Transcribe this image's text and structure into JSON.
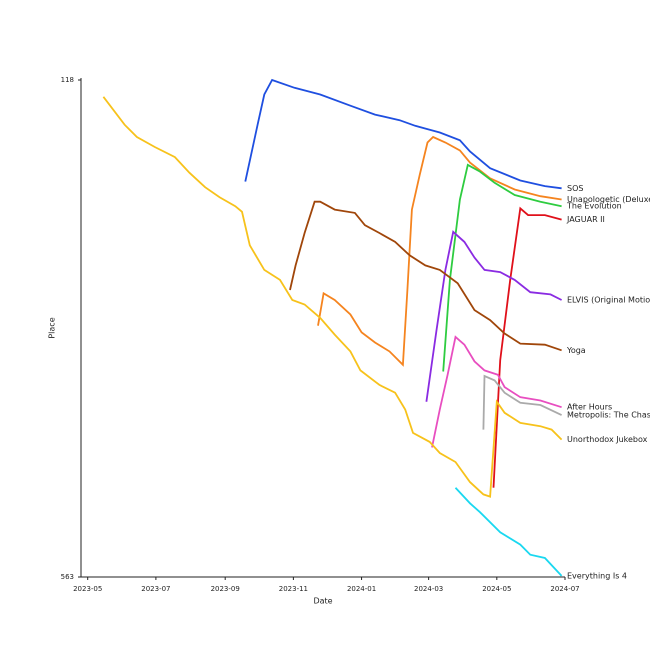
{
  "chart_data": {
    "type": "line",
    "x_label": "Date",
    "y_label": "Place",
    "xlim": [
      "2023-04-25",
      "2024-07-01"
    ],
    "xticks": [
      "2023-05",
      "2023-07",
      "2023-09",
      "2023-11",
      "2024-01",
      "2024-03",
      "2024-05",
      "2024-07"
    ],
    "ylim": [
      118,
      563
    ],
    "yticks": [
      118,
      563
    ],
    "y_inverted": true,
    "grid": false,
    "series": [
      {
        "name": "SOS",
        "color": "#1f4fe0",
        "x": [
          "2023-09-19",
          "2023-09-30",
          "2023-10-06",
          "2023-10-13",
          "2023-11-02",
          "2023-11-25",
          "2023-12-22",
          "2024-01-13",
          "2024-02-04",
          "2024-02-18",
          "2024-03-11",
          "2024-03-29",
          "2024-04-07",
          "2024-04-25",
          "2024-05-22",
          "2024-06-13",
          "2024-06-28"
        ],
        "values": [
          209,
          158,
          131,
          118,
          125,
          131,
          141,
          149,
          154,
          159,
          165,
          172,
          182,
          197,
          208,
          213,
          215
        ]
      },
      {
        "name": "Unapologetic (Deluxe)",
        "color": "#f5841f",
        "x": [
          "2023-11-23",
          "2023-11-28",
          "2023-12-08",
          "2023-12-22",
          "2024-01-01",
          "2024-01-13",
          "2024-01-26",
          "2024-02-07",
          "2024-02-11",
          "2024-02-15",
          "2024-02-22",
          "2024-02-29",
          "2024-03-05",
          "2024-03-16",
          "2024-03-29",
          "2024-04-07",
          "2024-04-25",
          "2024-05-17",
          "2024-06-09",
          "2024-06-28"
        ],
        "values": [
          338,
          309,
          315,
          328,
          344,
          353,
          361,
          373,
          306,
          234,
          203,
          174,
          169,
          174,
          181,
          192,
          206,
          216,
          222,
          225
        ]
      },
      {
        "name": "The Evolution",
        "color": "#2ecc40",
        "x": [
          "2024-03-14",
          "2024-03-20",
          "2024-03-29",
          "2024-04-05",
          "2024-04-16",
          "2024-04-29",
          "2024-05-17",
          "2024-06-09",
          "2024-06-28"
        ],
        "values": [
          379,
          297,
          225,
          194,
          200,
          210,
          221,
          227,
          231
        ]
      },
      {
        "name": "JAGUAR II",
        "color": "#e0101a",
        "x": [
          "2024-04-28",
          "2024-05-04",
          "2024-05-13",
          "2024-05-22",
          "2024-05-29",
          "2024-06-13",
          "2024-06-28"
        ],
        "values": [
          483,
          369,
          297,
          233,
          239,
          239,
          243
        ]
      },
      {
        "name": "ELVIS (Original Motion Picture Soundtrack)",
        "color": "#8a2be2",
        "x": [
          "2024-02-28",
          "2024-03-08",
          "2024-03-16",
          "2024-03-23",
          "2024-04-02",
          "2024-04-11",
          "2024-04-20",
          "2024-05-04",
          "2024-05-17",
          "2024-05-31",
          "2024-06-18",
          "2024-06-28"
        ],
        "values": [
          406,
          342,
          288,
          254,
          263,
          277,
          288,
          290,
          297,
          308,
          310,
          315
        ]
      },
      {
        "name": "Yoga",
        "color": "#a0460a",
        "x": [
          "2023-10-29",
          "2023-11-03",
          "2023-11-11",
          "2023-11-20",
          "2023-11-25",
          "2023-12-08",
          "2023-12-26",
          "2024-01-04",
          "2024-01-17",
          "2024-01-31",
          "2024-02-13",
          "2024-02-27",
          "2024-03-11",
          "2024-03-27",
          "2024-04-11",
          "2024-04-25",
          "2024-05-08",
          "2024-05-22",
          "2024-06-13",
          "2024-06-28"
        ],
        "values": [
          306,
          284,
          255,
          227,
          227,
          234,
          237,
          248,
          255,
          263,
          275,
          284,
          288,
          300,
          324,
          333,
          345,
          354,
          355,
          360
        ]
      },
      {
        "name": "After Hours",
        "color": "#e84ec0",
        "x": [
          "2024-03-04",
          "2024-03-11",
          "2024-03-18",
          "2024-03-25",
          "2024-04-02",
          "2024-04-11",
          "2024-04-20",
          "2024-05-02",
          "2024-05-08",
          "2024-05-22",
          "2024-06-09",
          "2024-06-28"
        ],
        "values": [
          447,
          413,
          382,
          348,
          355,
          370,
          378,
          382,
          393,
          402,
          405,
          411
        ]
      },
      {
        "name": "Metropolis: The Chase Suite",
        "color": "#aaaaaa",
        "x": [
          "2024-04-19",
          "2024-04-20",
          "2024-04-29",
          "2024-05-08",
          "2024-05-22",
          "2024-06-09",
          "2024-06-28"
        ],
        "values": [
          431,
          383,
          387,
          398,
          407,
          409,
          418
        ]
      },
      {
        "name": "Unorthodox Jukebox",
        "color": "#f7c21b",
        "x": [
          "2023-05-15",
          "2023-06-03",
          "2023-06-14",
          "2023-06-30",
          "2023-07-18",
          "2023-07-31",
          "2023-08-14",
          "2023-08-27",
          "2023-09-10",
          "2023-09-16",
          "2023-09-23",
          "2023-10-06",
          "2023-10-20",
          "2023-10-31",
          "2023-11-11",
          "2023-11-25",
          "2023-12-08",
          "2023-12-22",
          "2023-12-31",
          "2024-01-17",
          "2024-01-31",
          "2024-02-09",
          "2024-02-16",
          "2024-03-02",
          "2024-03-11",
          "2024-03-25",
          "2024-04-07",
          "2024-04-19",
          "2024-04-25",
          "2024-05-01",
          "2024-05-08",
          "2024-05-22",
          "2024-06-09",
          "2024-06-19",
          "2024-06-28"
        ],
        "values": [
          133,
          158,
          169,
          178,
          187,
          201,
          214,
          223,
          231,
          236,
          266,
          288,
          297,
          315,
          319,
          331,
          346,
          361,
          378,
          391,
          398,
          413,
          434,
          442,
          452,
          460,
          478,
          489,
          491,
          406,
          416,
          425,
          428,
          431,
          440
        ]
      },
      {
        "name": "Everything Is 4",
        "color": "#1ad8f0",
        "x": [
          "2024-03-25",
          "2024-04-07",
          "2024-04-16",
          "2024-05-04",
          "2024-05-22",
          "2024-05-31",
          "2024-06-13",
          "2024-06-28"
        ],
        "values": [
          483,
          497,
          505,
          523,
          534,
          543,
          546,
          562
        ]
      }
    ]
  }
}
